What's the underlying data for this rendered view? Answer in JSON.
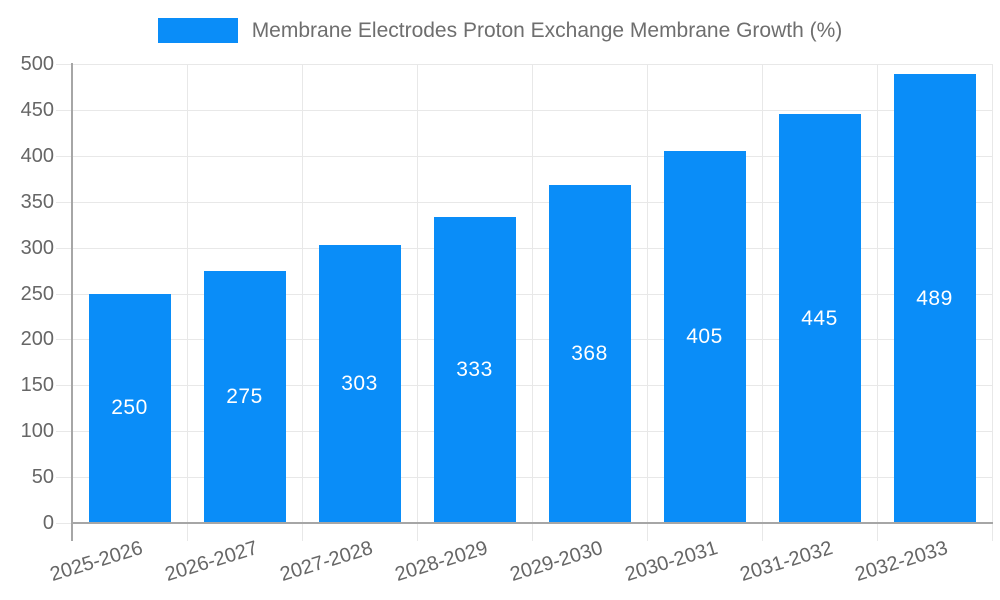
{
  "legend": {
    "label": "Membrane Electrodes Proton Exchange Membrane Growth (%)"
  },
  "chart_data": {
    "type": "bar",
    "title": "",
    "series_name": "Membrane Electrodes Proton Exchange Membrane Growth (%)",
    "categories": [
      "2025-2026",
      "2026-2027",
      "2027-2028",
      "2028-2029",
      "2029-2030",
      "2030-2031",
      "2031-2032",
      "2032-2033"
    ],
    "values": [
      250,
      275,
      303,
      333,
      368,
      405,
      445,
      489
    ],
    "xlabel": "",
    "ylabel": "",
    "ylim": [
      0,
      500
    ],
    "ytick_step": 50,
    "ytick_labels": [
      "0",
      "50",
      "100",
      "150",
      "200",
      "250",
      "300",
      "350",
      "400",
      "450",
      "500"
    ],
    "grid": true,
    "legend_position": "top",
    "value_label_position": "inside-center"
  },
  "style": {
    "bar_color": "#0a8df8",
    "value_label_color": "#ffffff",
    "axis_text_color": "#666666",
    "legend_text_color": "#6e6e6e",
    "grid_color": "#e8e8e8",
    "axis_line_color": "#a6a6a6",
    "background": "#ffffff"
  }
}
